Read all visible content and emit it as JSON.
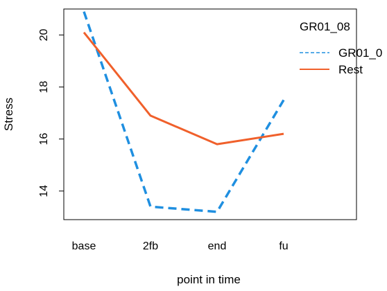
{
  "chart_data": {
    "type": "line",
    "categories": [
      "base",
      "2fb",
      "end",
      "fu"
    ],
    "series": [
      {
        "name": "GR01_0",
        "values": [
          20.9,
          13.4,
          13.2,
          17.5
        ],
        "color": "#1f8fe0",
        "line_style": "dashed"
      },
      {
        "name": "Rest",
        "values": [
          20.1,
          16.9,
          15.8,
          16.2
        ],
        "color": "#f0602b",
        "line_style": "solid"
      }
    ],
    "title": "",
    "xlabel": "point in time",
    "ylabel": "Stress",
    "y_ticks": [
      14,
      16,
      18,
      20
    ],
    "ylim": [
      12.9,
      21.0
    ],
    "grid": false,
    "legend": {
      "title": "GR01_08",
      "position": "right"
    }
  }
}
